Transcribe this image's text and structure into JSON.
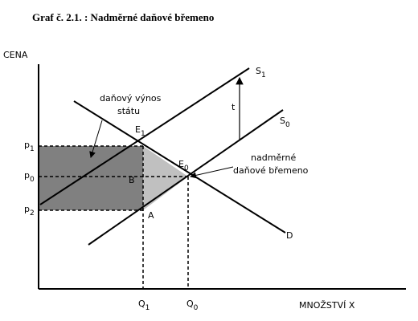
{
  "header": {
    "title": "Graf č. 2.1. : Nadměrné daňové břemeno"
  },
  "axes": {
    "y_label": "CENA",
    "x_label": "MNOŽSTVÍ  X"
  },
  "price_labels": [
    {
      "base": "p",
      "sub": "1"
    },
    {
      "base": "p",
      "sub": "0"
    },
    {
      "base": "p",
      "sub": "2"
    }
  ],
  "quantity_labels": [
    {
      "base": "Q",
      "sub": "1"
    },
    {
      "base": "Q",
      "sub": "0"
    }
  ],
  "curves": {
    "s1": {
      "base": "S",
      "sub": "1"
    },
    "s0": {
      "base": "S",
      "sub": "0"
    },
    "d": "D"
  },
  "points": {
    "e1": {
      "base": "E",
      "sub": "1"
    },
    "e0": {
      "base": "E",
      "sub": "0"
    },
    "b": "B",
    "a": "A"
  },
  "tax": "t",
  "annotations": {
    "revenue": [
      "daňový výnos",
      "státu"
    ],
    "burden": [
      "nadměrné",
      "daňové  břemeno"
    ]
  }
}
